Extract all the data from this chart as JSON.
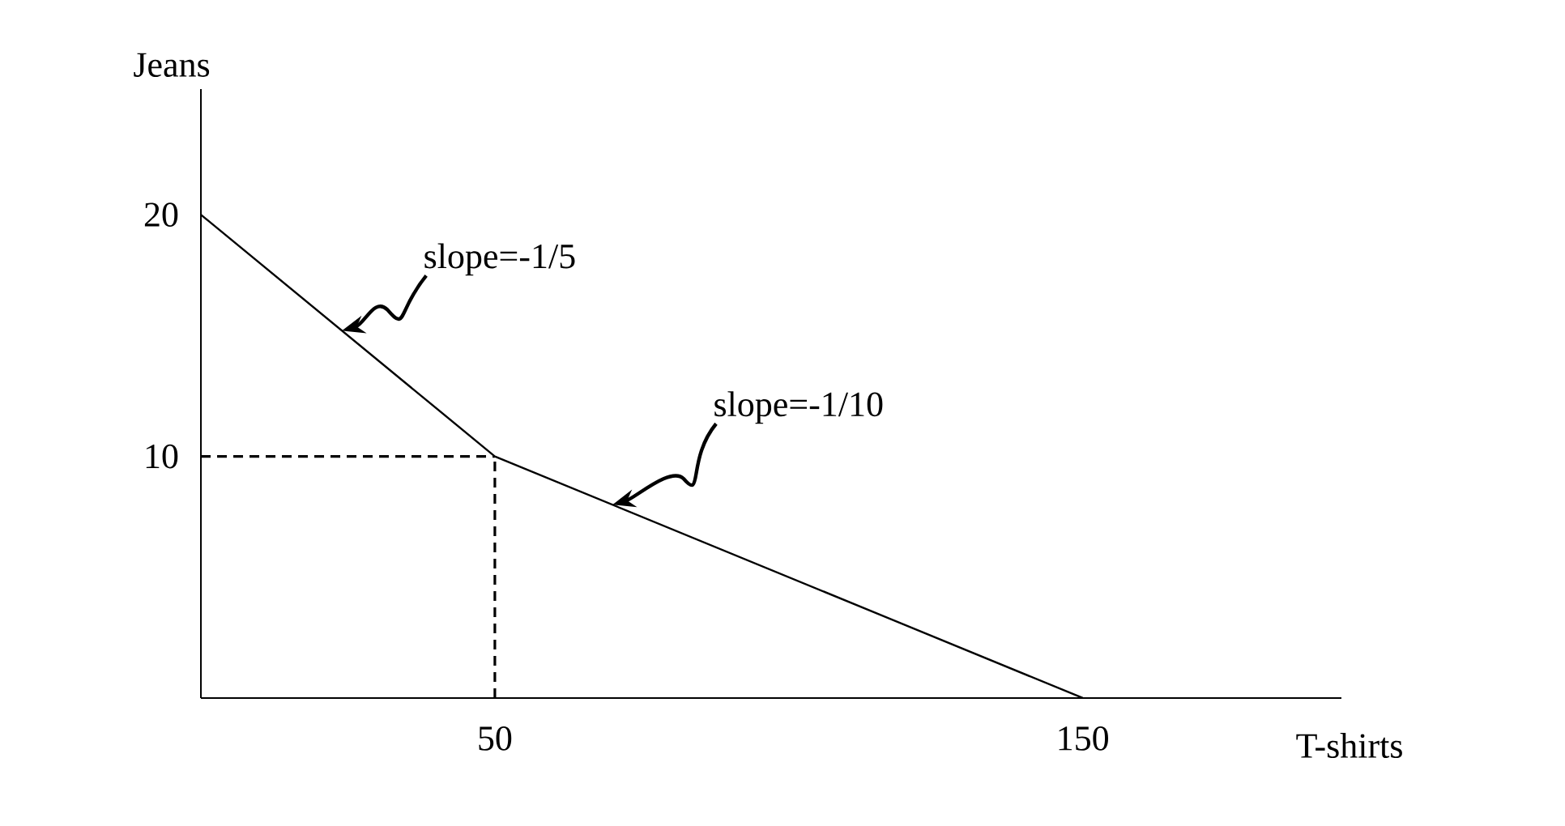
{
  "chart_data": {
    "type": "line",
    "xlabel": "T-shirts",
    "ylabel": "Jeans",
    "x": [
      0,
      50,
      150
    ],
    "values": [
      20,
      10,
      0
    ],
    "color": "#000000",
    "xlim": [
      0,
      194
    ],
    "ylim": [
      0,
      25.2
    ],
    "xticks": [
      50,
      150
    ],
    "yticks": [
      10,
      20
    ],
    "ref_lines": [
      {
        "axis": "x",
        "value": 50,
        "line_style": "dashed",
        "color": "#000000"
      },
      {
        "axis": "y",
        "value": 10,
        "line_style": "dashed",
        "color": "#000000"
      }
    ],
    "annotations": [
      {
        "text": "slope=-1/5",
        "x": 24,
        "y": 15.2
      },
      {
        "text": "slope=-1/10",
        "x": 70,
        "y": 8
      }
    ],
    "grid": false,
    "marker": "none",
    "line_style": "solid"
  }
}
